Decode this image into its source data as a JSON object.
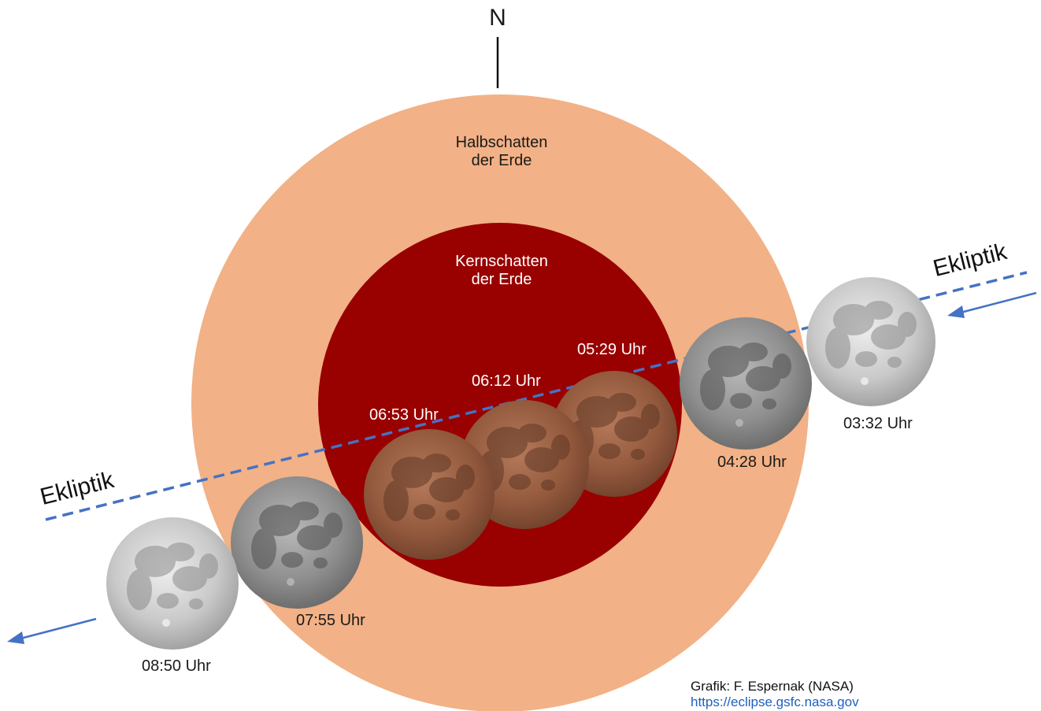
{
  "north_label": "N",
  "penumbra": {
    "line1": "Halbschatten",
    "line2": "der Erde",
    "color": "#f2b186"
  },
  "umbra": {
    "line1": "Kernschatten",
    "line2": "der Erde",
    "color": "#990000"
  },
  "ecliptic_label": "Ekliptik",
  "ecliptic_color": "#4472c4",
  "moons": [
    {
      "time": "03:32 Uhr",
      "phase": "outside"
    },
    {
      "time": "04:28 Uhr",
      "phase": "penumbral"
    },
    {
      "time": "05:29 Uhr",
      "phase": "total"
    },
    {
      "time": "06:12 Uhr",
      "phase": "total"
    },
    {
      "time": "06:53 Uhr",
      "phase": "total"
    },
    {
      "time": "07:55 Uhr",
      "phase": "penumbral"
    },
    {
      "time": "08:50 Uhr",
      "phase": "outside"
    }
  ],
  "credit": {
    "line1": "Grafik: F. Espernak (NASA)",
    "link": "https://eclipse.gsfc.nasa.gov"
  }
}
